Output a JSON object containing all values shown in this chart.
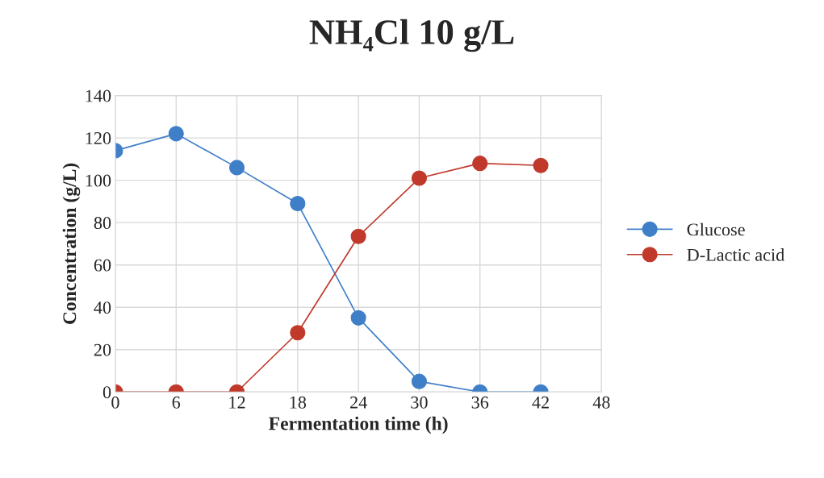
{
  "chart_data": {
    "type": "line",
    "title": "NH₄Cl 10 g/L",
    "xlabel": "Fermentation time (h)",
    "ylabel": "Concentration (g/L)",
    "x": [
      0,
      6,
      12,
      18,
      24,
      30,
      36,
      42
    ],
    "series": [
      {
        "name": "Glucose",
        "color": "#3f7fc8",
        "values": [
          114,
          122,
          106,
          89,
          35,
          5,
          0,
          0
        ]
      },
      {
        "name": "D-Lactic acid",
        "color": "#c0392b",
        "values": [
          0,
          0,
          0,
          28,
          73.5,
          101,
          108,
          107
        ]
      }
    ],
    "xlim": [
      0,
      48
    ],
    "xticks": [
      0,
      6,
      12,
      18,
      24,
      30,
      36,
      42,
      48
    ],
    "ylim": [
      0,
      140
    ],
    "yticks": [
      0,
      20,
      40,
      60,
      80,
      100,
      120,
      140
    ],
    "grid": true,
    "legend": "right",
    "marker": "circle",
    "line_style": "solid"
  }
}
